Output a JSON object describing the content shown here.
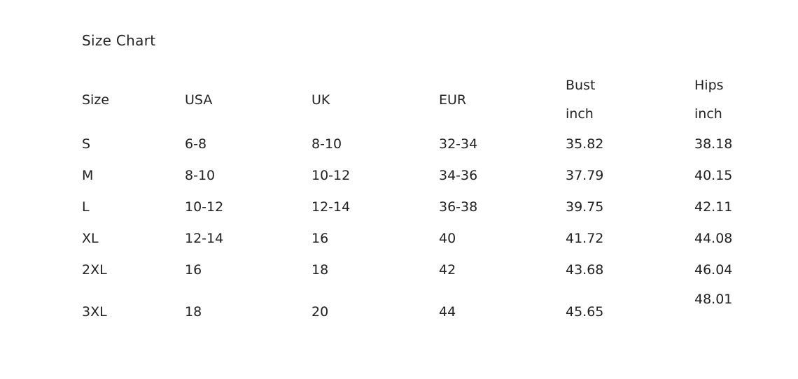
{
  "title": "Size Chart",
  "headers": [
    {
      "line1": "Size",
      "line2": ""
    },
    {
      "line1": "USA",
      "line2": ""
    },
    {
      "line1": "UK",
      "line2": ""
    },
    {
      "line1": "EUR",
      "line2": ""
    },
    {
      "line1": "Bust",
      "line2": "inch"
    },
    {
      "line1": "Hips",
      "line2": "inch"
    }
  ],
  "rows": [
    [
      "S",
      "6-8",
      "8-10",
      "32-34",
      "35.82",
      "38.18"
    ],
    [
      "M",
      "8-10",
      "10-12",
      "34-36",
      "37.79",
      "40.15"
    ],
    [
      "L",
      "10-12",
      "12-14",
      "36-38",
      "39.75",
      "42.11"
    ],
    [
      "XL",
      "12-14",
      "16",
      "40",
      "41.72",
      "44.08"
    ],
    [
      "2XL",
      "16",
      "18",
      "42",
      "43.68",
      "46.04"
    ],
    [
      "3XL",
      "18",
      "20",
      "44",
      "45.65",
      "48.01"
    ]
  ]
}
